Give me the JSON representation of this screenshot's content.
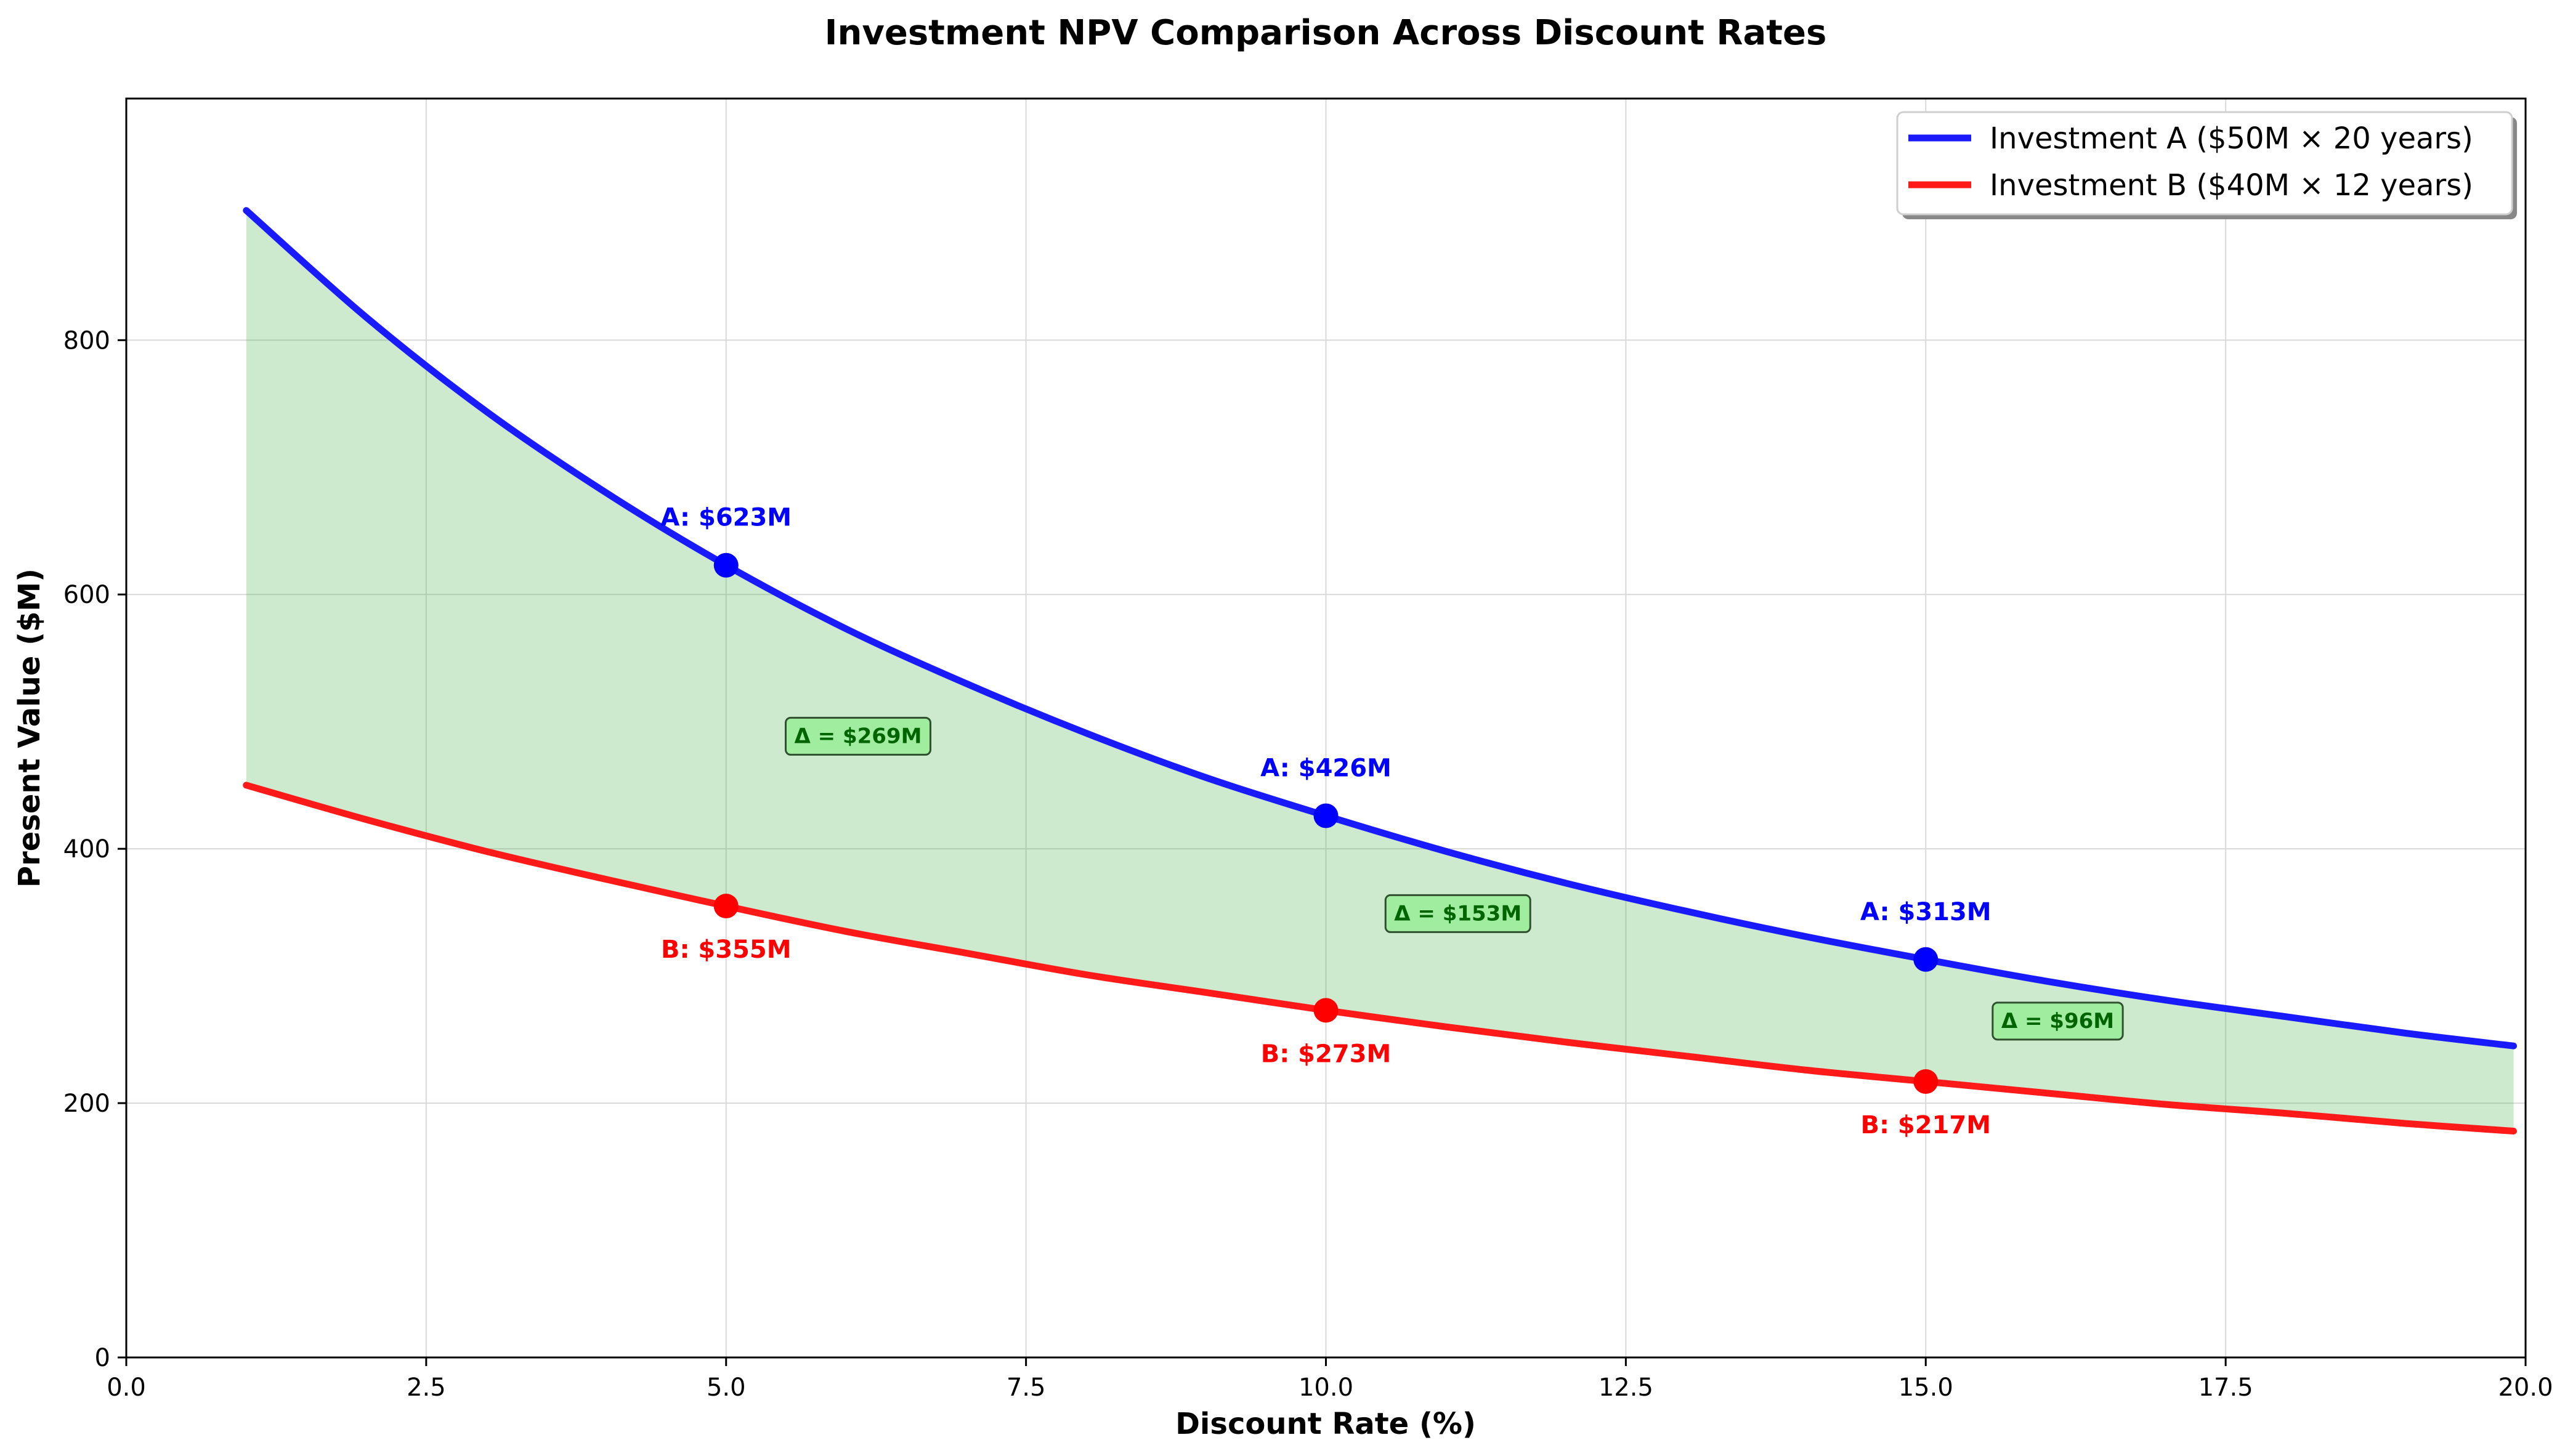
{
  "chart_data": {
    "type": "line",
    "title": "Investment NPV Comparison Across Discount Rates",
    "xlabel": "Discount Rate (%)",
    "ylabel": "Present Value ($M)",
    "xlim": [
      0,
      20
    ],
    "ylim": [
      0,
      990
    ],
    "xticks": [
      "0.0",
      "2.5",
      "5.0",
      "7.5",
      "10.0",
      "12.5",
      "15.0",
      "17.5",
      "20.0"
    ],
    "yticks": [
      "0",
      "200",
      "400",
      "600",
      "800"
    ],
    "grid": true,
    "legend_position": "top-right",
    "fill_between": true,
    "series": [
      {
        "name": "Investment A ($50M × 20 years)",
        "color": "#1a1aff",
        "x": [
          1,
          2,
          3,
          4,
          5,
          6,
          7,
          8,
          9,
          10,
          11,
          12,
          13,
          14,
          15,
          16,
          17,
          18,
          19,
          19.9
        ],
        "values": [
          902,
          818,
          744,
          680,
          623,
          573,
          530,
          491,
          456,
          426,
          398,
          373,
          351,
          331,
          313,
          296,
          281,
          268,
          255,
          245
        ]
      },
      {
        "name": "Investment B ($40M × 12 years)",
        "color": "#ff1a1a",
        "x": [
          1,
          2,
          3,
          4,
          5,
          6,
          7,
          8,
          9,
          10,
          11,
          12,
          13,
          14,
          15,
          16,
          17,
          18,
          19,
          19.9
        ],
        "values": [
          450,
          423,
          398,
          376,
          355,
          335,
          318,
          301,
          287,
          273,
          260,
          248,
          237,
          226,
          217,
          208,
          199,
          192,
          184,
          178
        ]
      }
    ],
    "markers": [
      {
        "series": 0,
        "x": 5,
        "y": 623,
        "label": "A: $623M"
      },
      {
        "series": 0,
        "x": 10,
        "y": 426,
        "label": "A: $426M"
      },
      {
        "series": 0,
        "x": 15,
        "y": 313,
        "label": "A: $313M"
      },
      {
        "series": 1,
        "x": 5,
        "y": 355,
        "label": "B: $355M"
      },
      {
        "series": 1,
        "x": 10,
        "y": 273,
        "label": "B: $273M"
      },
      {
        "series": 1,
        "x": 15,
        "y": 217,
        "label": "B: $217M"
      }
    ],
    "deltas": [
      {
        "x": 5,
        "label": "Δ = $269M"
      },
      {
        "x": 10,
        "label": "Δ = $153M"
      },
      {
        "x": 15,
        "label": "Δ = $96M"
      }
    ],
    "colors": {
      "fill": "#4caf50",
      "delta_box": "#90ee90",
      "delta_text": "#006400",
      "grid": "#d9d9d9"
    }
  }
}
